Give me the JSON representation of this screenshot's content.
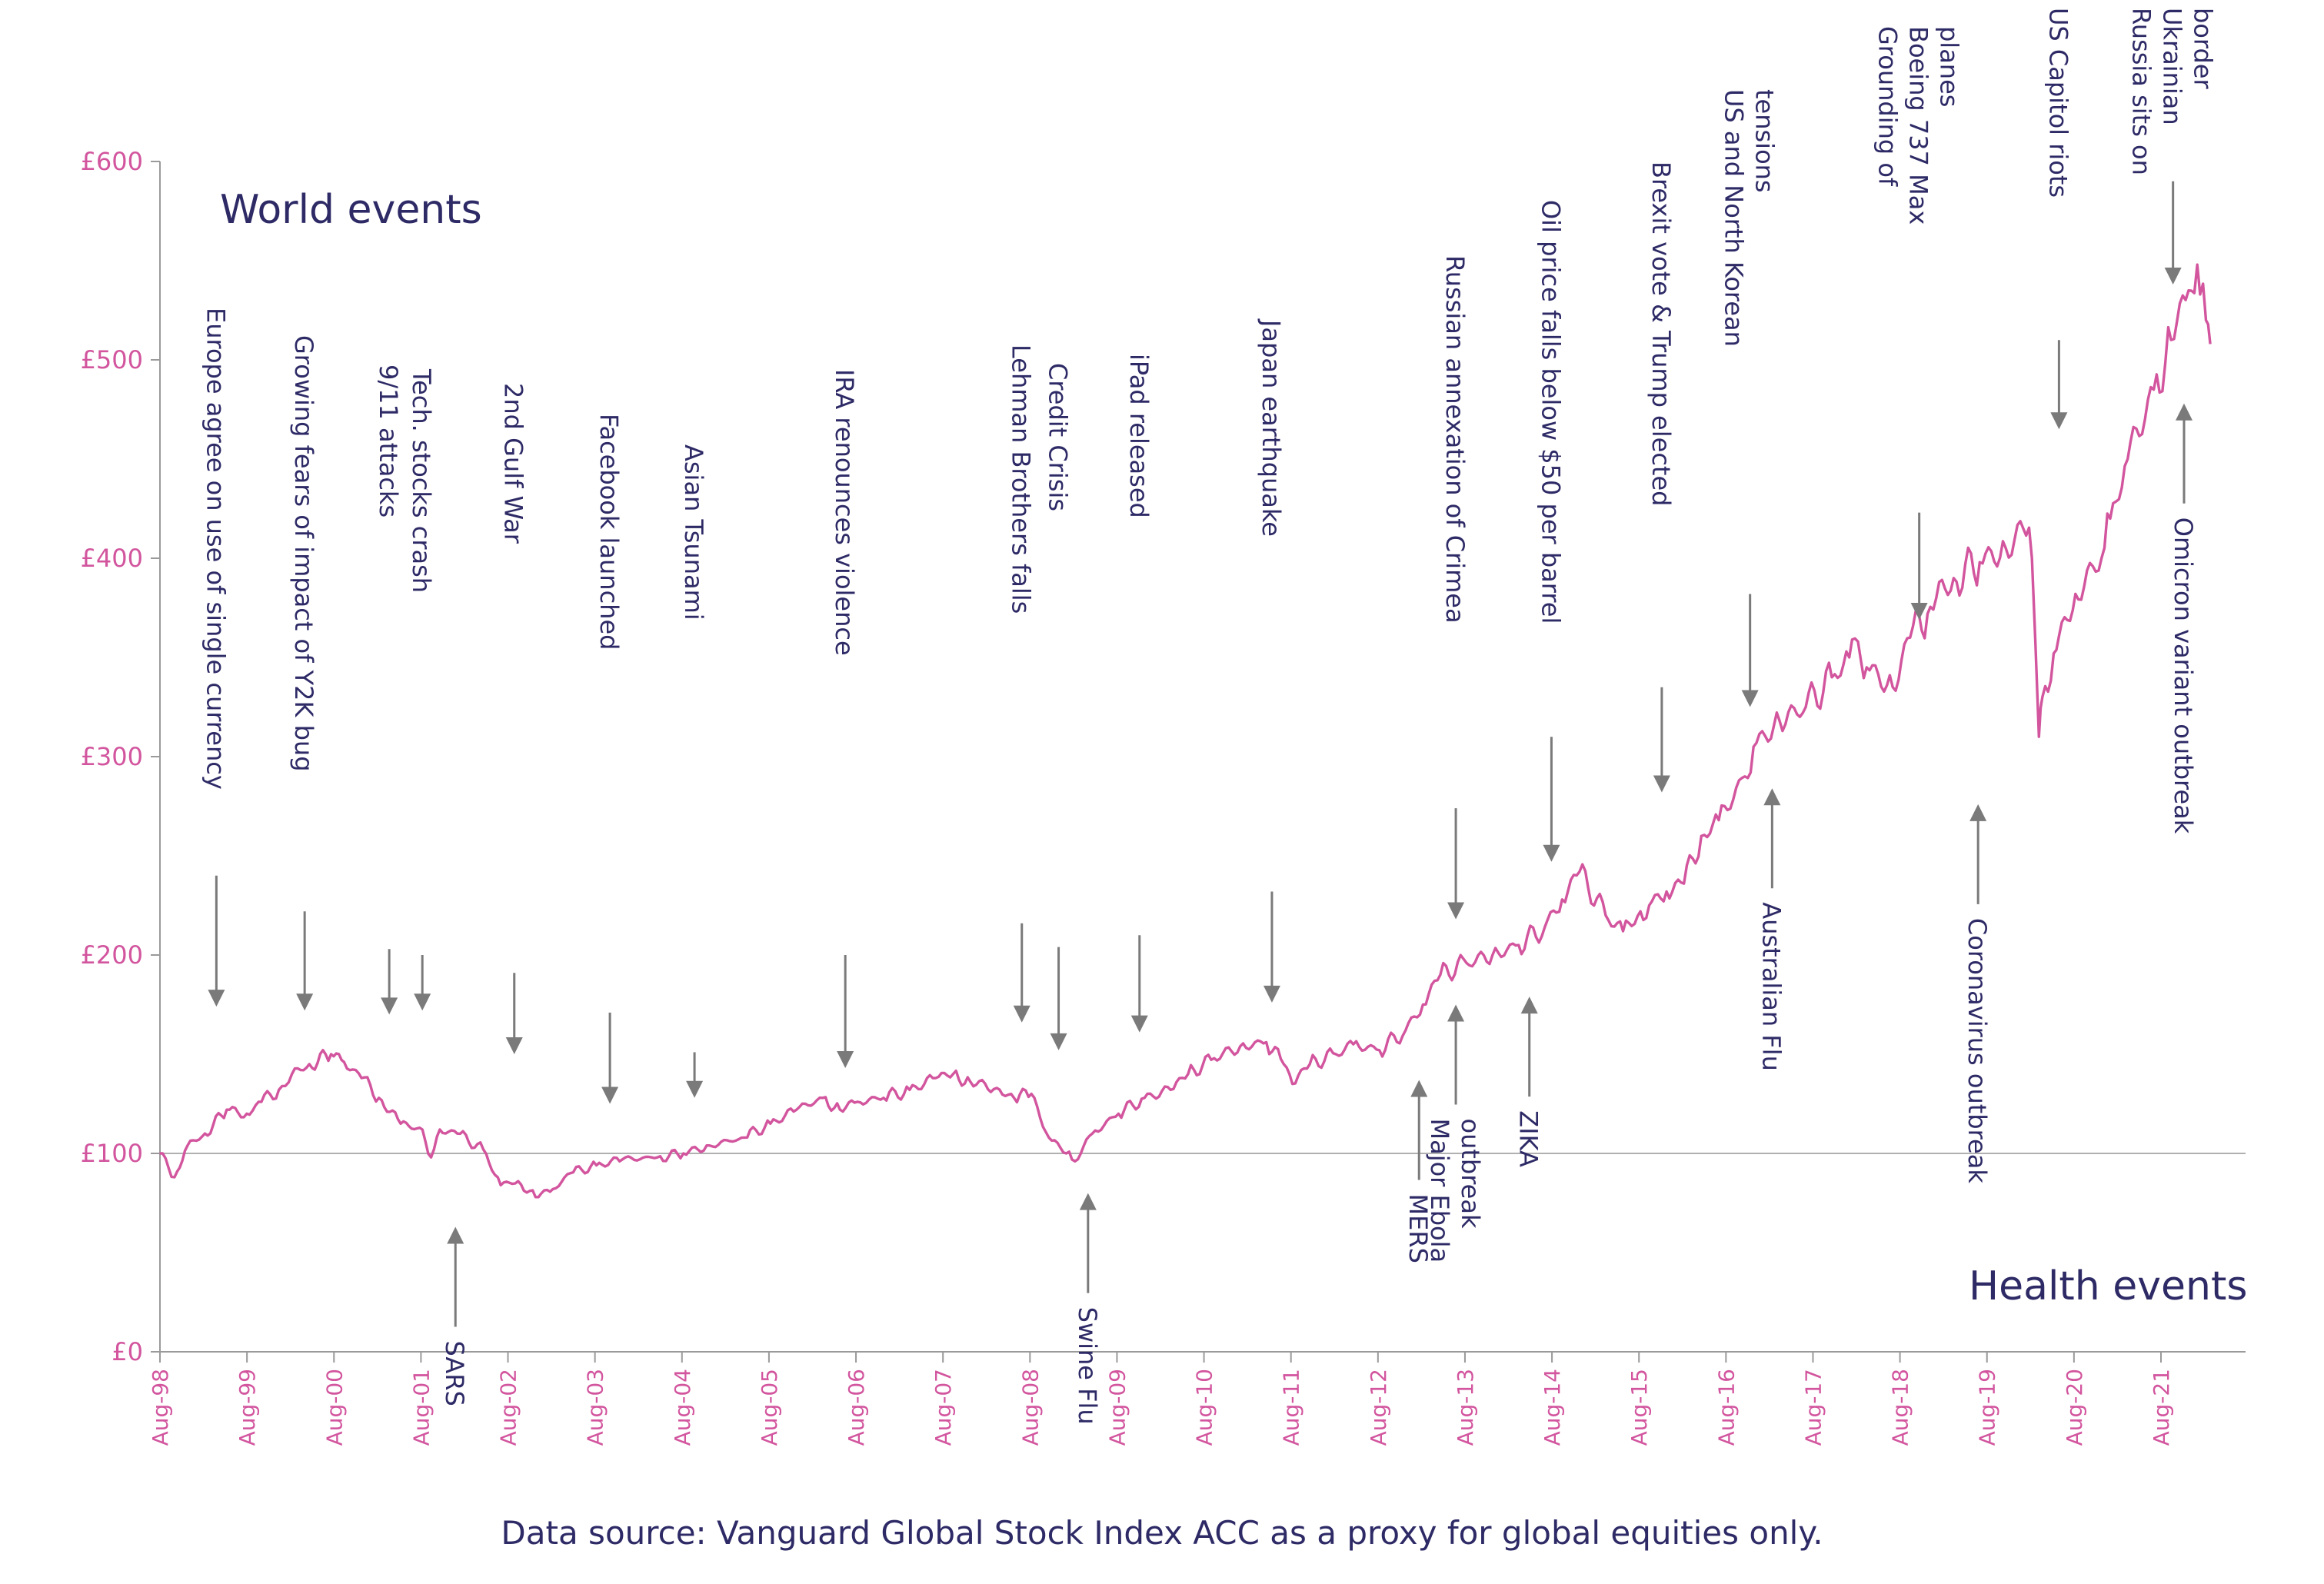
{
  "chart_data": {
    "type": "line",
    "title_world": "World events",
    "title_health": "Health events",
    "source": "Data source: Vanguard Global Stock Index ACC as a proxy for global equities only.",
    "ylim": [
      0,
      600
    ],
    "yticks": [
      0,
      100,
      200,
      300,
      400,
      500,
      600
    ],
    "ytick_labels": [
      "£0",
      "£100",
      "£200",
      "£300",
      "£400",
      "£500",
      "£600"
    ],
    "baseline": 100,
    "xlim": [
      1998.583,
      2022.2
    ],
    "xticks": [
      1998.583,
      1999.583,
      2000.583,
      2001.583,
      2002.583,
      2003.583,
      2004.583,
      2005.583,
      2006.583,
      2007.583,
      2008.583,
      2009.583,
      2010.583,
      2011.583,
      2012.583,
      2013.583,
      2014.583,
      2015.583,
      2016.583,
      2017.583,
      2018.583,
      2019.583,
      2020.583,
      2021.583
    ],
    "xtick_labels": [
      "Aug-98",
      "Aug-99",
      "Aug-00",
      "Aug-01",
      "Aug-02",
      "Aug-03",
      "Aug-04",
      "Aug-05",
      "Aug-06",
      "Aug-07",
      "Aug-08",
      "Aug-09",
      "Aug-10",
      "Aug-11",
      "Aug-12",
      "Aug-13",
      "Aug-14",
      "Aug-15",
      "Aug-16",
      "Aug-17",
      "Aug-18",
      "Aug-19",
      "Aug-20",
      "Aug-21"
    ],
    "series": [
      {
        "name": "Vanguard Global Stock Index ACC",
        "x": [
          1998.58,
          1998.75,
          1998.9,
          1999.1,
          1999.35,
          1999.58,
          1999.75,
          1999.95,
          2000.1,
          2000.3,
          2000.55,
          2000.7,
          2000.9,
          2001.1,
          2001.35,
          2001.6,
          2001.7,
          2001.8,
          2002.0,
          2002.3,
          2002.5,
          2002.7,
          2002.9,
          2003.1,
          2003.3,
          2003.6,
          2003.9,
          2004.3,
          2004.6,
          2004.9,
          2005.3,
          2005.6,
          2005.9,
          2006.2,
          2006.4,
          2006.6,
          2006.9,
          2007.2,
          2007.5,
          2007.7,
          2007.9,
          2008.2,
          2008.4,
          2008.6,
          2008.8,
          2009.0,
          2009.1,
          2009.3,
          2009.6,
          2009.9,
          2010.2,
          2010.4,
          2010.7,
          2011.0,
          2011.3,
          2011.5,
          2011.6,
          2011.8,
          2012.1,
          2012.3,
          2012.6,
          2012.9,
          2013.1,
          2013.3,
          2013.6,
          2013.9,
          2014.2,
          2014.5,
          2014.7,
          2014.9,
          2015.2,
          2015.4,
          2015.6,
          2015.7,
          2015.9,
          2016.1,
          2016.3,
          2016.5,
          2016.8,
          2016.9,
          2017.2,
          2017.5,
          2017.8,
          2018.0,
          2018.1,
          2018.2,
          2018.5,
          2018.7,
          2018.9,
          2019.0,
          2019.2,
          2019.5,
          2019.8,
          2020.0,
          2020.1,
          2020.18,
          2020.22,
          2020.35,
          2020.6,
          2020.9,
          2021.0,
          2021.2,
          2021.5,
          2021.7,
          2021.9,
          2022.0,
          2022.1,
          2022.15
        ],
        "values": [
          100,
          88,
          104,
          110,
          122,
          120,
          126,
          132,
          140,
          145,
          150,
          146,
          138,
          128,
          115,
          112,
          98,
          112,
          110,
          102,
          84,
          86,
          78,
          82,
          90,
          94,
          97,
          98,
          100,
          104,
          108,
          115,
          122,
          128,
          122,
          126,
          128,
          132,
          138,
          140,
          136,
          133,
          128,
          130,
          108,
          100,
          96,
          110,
          120,
          128,
          132,
          140,
          148,
          154,
          156,
          145,
          135,
          145,
          150,
          155,
          152,
          162,
          175,
          190,
          196,
          200,
          205,
          214,
          228,
          242,
          220,
          212,
          222,
          225,
          232,
          236,
          260,
          268,
          290,
          305,
          318,
          325,
          340,
          350,
          358,
          345,
          335,
          360,
          372,
          380,
          390,
          398,
          405,
          415,
          400,
          310,
          330,
          352,
          382,
          400,
          420,
          450,
          485,
          510,
          535,
          548,
          520,
          508
        ]
      }
    ],
    "annotations": [
      {
        "group": "world",
        "lines": [
          "Europe agree on use of single currency"
        ],
        "x": 1999.35,
        "tail": 240,
        "head": 174
      },
      {
        "group": "world",
        "lines": [
          "Growing fears of impact of Y2K bug"
        ],
        "x": 2000.55,
        "tail": 222,
        "head": 172
      },
      {
        "group": "world",
        "lines": [
          "9/11 attacks"
        ],
        "x": 2001.7,
        "tail": 203,
        "head": 170
      },
      {
        "group": "world",
        "lines": [
          "Tech. stocks crash"
        ],
        "x": 2002.15,
        "tail": 200,
        "head": 172
      },
      {
        "group": "world",
        "lines": [
          "2nd Gulf War"
        ],
        "x": 2003.4,
        "tail": 191,
        "head": 150
      },
      {
        "group": "world",
        "lines": [
          "Facebook launched"
        ],
        "x": 2004.7,
        "tail": 171,
        "head": 125
      },
      {
        "group": "world",
        "lines": [
          "Asian Tsunami"
        ],
        "x": 2005.85,
        "tail": 151,
        "head": 128
      },
      {
        "group": "world",
        "lines": [
          "IRA renounces violence"
        ],
        "x": 2007.9,
        "tail": 200,
        "head": 143
      },
      {
        "group": "world",
        "lines": [
          "Lehman Brothers falls"
        ],
        "x": 2010.3,
        "tail": 216,
        "head": 166
      },
      {
        "group": "world",
        "lines": [
          "Credit Crisis"
        ],
        "x": 2010.8,
        "tail": 204,
        "head": 152
      },
      {
        "group": "world",
        "lines": [
          "iPad released"
        ],
        "x": 2011.9,
        "tail": 210,
        "head": 161
      },
      {
        "group": "world",
        "lines": [
          "Japan earthquake"
        ],
        "x": 2013.7,
        "tail": 232,
        "head": 176
      },
      {
        "group": "world",
        "lines": [
          "Russian annexation of Crimea"
        ],
        "x": 2016.2,
        "tail": 274,
        "head": 218
      },
      {
        "group": "world",
        "lines": [
          "Oil price falls below $50 per barrel"
        ],
        "x": 2017.5,
        "tail": 310,
        "head": 247
      },
      {
        "group": "world",
        "lines": [
          "Brexit vote & Trump elected"
        ],
        "x": 2019.0,
        "tail": 335,
        "head": 282
      },
      {
        "group": "world",
        "lines": [
          "US and North Korean",
          "tensions"
        ],
        "x": 2020.2,
        "tail": 382,
        "head": 325
      },
      {
        "group": "world",
        "lines": [
          "Grounding of",
          "Boeing 737 Max",
          "planes"
        ],
        "x": 2022.5,
        "tail": 423,
        "head": 369
      },
      {
        "group": "world",
        "lines": [
          "US Capitol riots"
        ],
        "x": 2024.4,
        "tail": 510,
        "head": 465
      },
      {
        "group": "world",
        "lines": [
          "Russia sits on",
          "Ukrainian",
          "border"
        ],
        "x": 2025.95,
        "tail": 590,
        "head": 538
      },
      {
        "group": "health",
        "lines": [
          "SARS"
        ],
        "x": 2002.6,
        "tail": 0,
        "head": 63
      },
      {
        "group": "health",
        "lines": [
          "Swine Flu"
        ],
        "x": 2011.2,
        "tail": 0,
        "head": 80
      },
      {
        "group": "health",
        "lines": [
          "MERS"
        ],
        "x": 2015.7,
        "tail": 0,
        "head": 137
      },
      {
        "group": "health",
        "lines": [
          "Major Ebola",
          "outbreak"
        ],
        "x": 2016.2,
        "tail": 0,
        "head": 175
      },
      {
        "group": "health",
        "lines": [
          "ZIKA"
        ],
        "x": 2017.2,
        "tail": 0,
        "head": 179
      },
      {
        "group": "health",
        "lines": [
          "Australian Flu"
        ],
        "x": 2020.5,
        "tail": 0,
        "head": 284
      },
      {
        "group": "health",
        "lines": [
          "Coronavirus outbreak"
        ],
        "x": 2023.3,
        "tail": 0,
        "head": 276
      },
      {
        "group": "health",
        "lines": [
          "Omicron variant outbreak"
        ],
        "x": 2026.1,
        "tail": 0,
        "head": 478
      }
    ]
  }
}
